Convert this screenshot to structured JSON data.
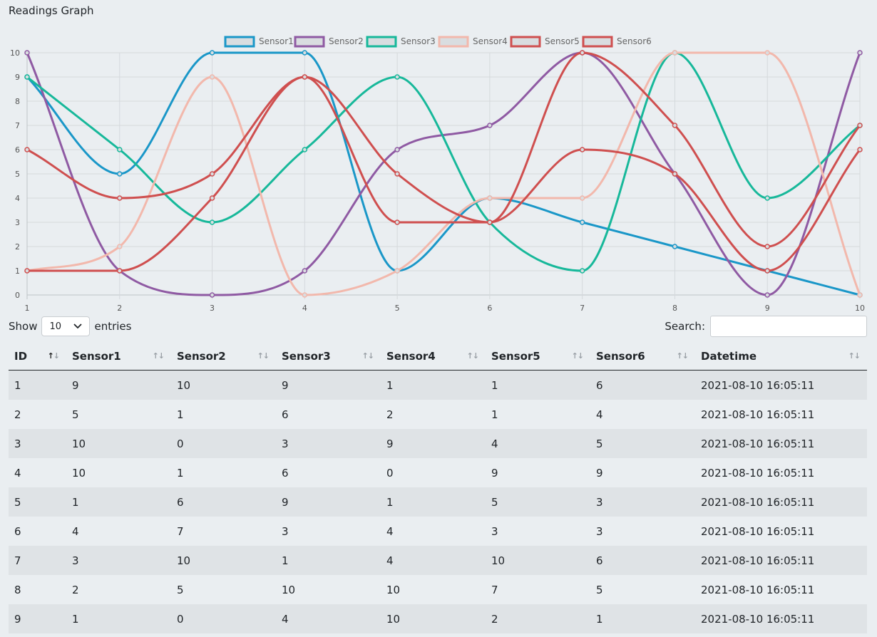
{
  "page": {
    "title": "Readings Graph"
  },
  "controls": {
    "show_label": "Show",
    "entries_value": "10",
    "entries_label": "entries",
    "search_label": "Search:",
    "search_value": ""
  },
  "chart_data": {
    "type": "line",
    "x": [
      1,
      2,
      3,
      4,
      5,
      6,
      7,
      8,
      9,
      10
    ],
    "ylim": [
      0,
      10
    ],
    "yticks": [
      "0",
      "1",
      "2",
      "3",
      "4",
      "5",
      "6",
      "7",
      "8",
      "9",
      "10"
    ],
    "xticks": [
      "1",
      "2",
      "3",
      "4",
      "5",
      "6",
      "7",
      "8",
      "9",
      "10"
    ],
    "legend_position": "top-center",
    "grid": true,
    "series": [
      {
        "name": "Sensor1",
        "color": "#1a97c8",
        "values": [
          9,
          5,
          10,
          10,
          1,
          4,
          3,
          2,
          1,
          0
        ]
      },
      {
        "name": "Sensor2",
        "color": "#8f5aa3",
        "values": [
          10,
          1,
          0,
          1,
          6,
          7,
          10,
          5,
          0,
          10
        ]
      },
      {
        "name": "Sensor3",
        "color": "#17b89a",
        "values": [
          9,
          6,
          3,
          6,
          9,
          3,
          1,
          10,
          4,
          7
        ]
      },
      {
        "name": "Sensor4",
        "color": "#f2b8ac",
        "values": [
          1,
          2,
          9,
          0,
          1,
          4,
          4,
          10,
          10,
          0
        ]
      },
      {
        "name": "Sensor5",
        "color": "#cf4f4f",
        "values": [
          1,
          1,
          4,
          9,
          5,
          3,
          10,
          7,
          2,
          7
        ]
      },
      {
        "name": "Sensor6",
        "color": "#cf4f4f",
        "values": [
          6,
          4,
          5,
          9,
          3,
          3,
          6,
          5,
          1,
          6
        ]
      }
    ]
  },
  "table": {
    "headers": [
      "ID",
      "Sensor1",
      "Sensor2",
      "Sensor3",
      "Sensor4",
      "Sensor5",
      "Sensor6",
      "Datetime"
    ],
    "rows": [
      [
        "1",
        "9",
        "10",
        "9",
        "1",
        "1",
        "6",
        "2021-08-10 16:05:11"
      ],
      [
        "2",
        "5",
        "1",
        "6",
        "2",
        "1",
        "4",
        "2021-08-10 16:05:11"
      ],
      [
        "3",
        "10",
        "0",
        "3",
        "9",
        "4",
        "5",
        "2021-08-10 16:05:11"
      ],
      [
        "4",
        "10",
        "1",
        "6",
        "0",
        "9",
        "9",
        "2021-08-10 16:05:11"
      ],
      [
        "5",
        "1",
        "6",
        "9",
        "1",
        "5",
        "3",
        "2021-08-10 16:05:11"
      ],
      [
        "6",
        "4",
        "7",
        "3",
        "4",
        "3",
        "3",
        "2021-08-10 16:05:11"
      ],
      [
        "7",
        "3",
        "10",
        "1",
        "4",
        "10",
        "6",
        "2021-08-10 16:05:11"
      ],
      [
        "8",
        "2",
        "5",
        "10",
        "10",
        "7",
        "5",
        "2021-08-10 16:05:11"
      ],
      [
        "9",
        "1",
        "0",
        "4",
        "10",
        "2",
        "1",
        "2021-08-10 16:05:11"
      ]
    ]
  }
}
